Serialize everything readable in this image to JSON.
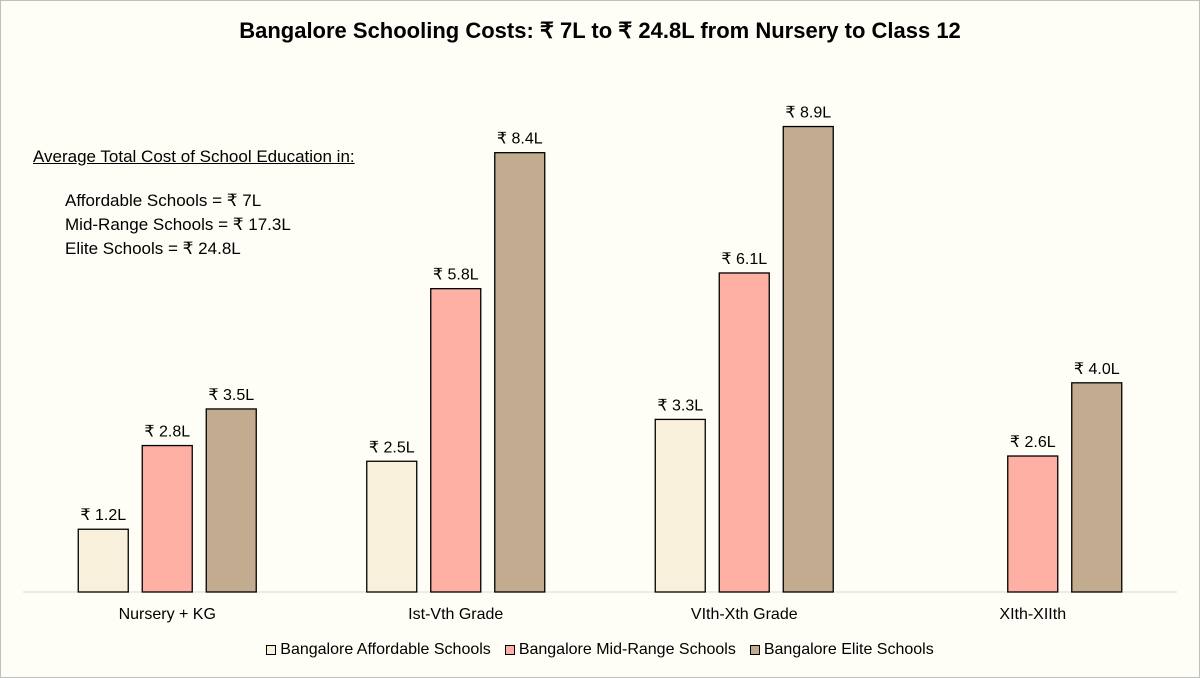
{
  "chart_data": {
    "type": "bar",
    "title": "Bangalore Schooling Costs: ₹ 7L to ₹ 24.8L from Nursery to Class 12",
    "xlabel": "",
    "ylabel": "",
    "categories": [
      "Nursery + KG",
      "Ist-Vth Grade",
      "VIth-Xth Grade",
      "XIth-XIIth"
    ],
    "series": [
      {
        "name": "Bangalore Affordable Schools",
        "color": "#f8f0da",
        "values": [
          1.2,
          2.5,
          3.3,
          null
        ],
        "labels": [
          "₹ 1.2L",
          "₹ 2.5L",
          "₹ 3.3L",
          null
        ]
      },
      {
        "name": "Bangalore Mid-Range Schools",
        "color": "#fdb0a3",
        "values": [
          2.8,
          5.8,
          6.1,
          2.6
        ],
        "labels": [
          "₹ 2.8L",
          "₹ 5.8L",
          "₹ 6.1L",
          "₹ 2.6L"
        ]
      },
      {
        "name": "Bangalore Elite Schools",
        "color": "#c2ab8e",
        "values": [
          3.5,
          8.4,
          8.9,
          4.0
        ],
        "labels": [
          "₹ 3.5L",
          "₹ 8.4L",
          "₹ 8.9L",
          "₹ 4.0L"
        ]
      }
    ],
    "ylim": [
      0,
      10
    ],
    "grid": false,
    "legend_position": "bottom",
    "annotation": {
      "heading": "Average Total Cost of School Education  in:",
      "lines": [
        "Affordable Schools = ₹ 7L",
        "Mid-Range Schools = ₹ 17.3L",
        "Elite Schools = ₹ 24.8L"
      ]
    }
  }
}
